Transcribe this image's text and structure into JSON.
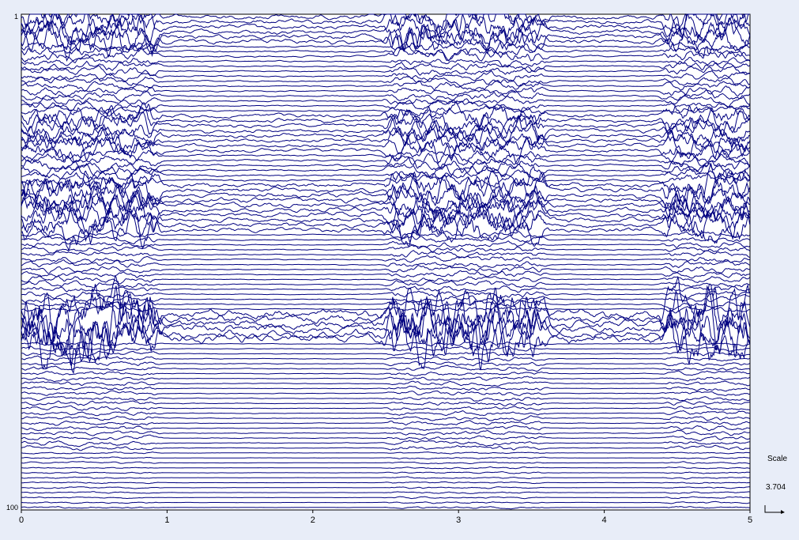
{
  "chart_data": {
    "type": "line",
    "title": "",
    "xlabel": "",
    "ylabel": "",
    "xlim": [
      0,
      5
    ],
    "x_ticks": [
      "0",
      "1",
      "2",
      "3",
      "4",
      "5"
    ],
    "channel_count": 100,
    "channel_labels_visible": [
      "1",
      "100"
    ],
    "series_color": "#000080",
    "grid": false,
    "legend": "none",
    "burst_segments": [
      [
        0.0,
        0.9
      ],
      [
        2.55,
        3.55
      ],
      [
        4.45,
        5.0
      ]
    ]
  },
  "scale": {
    "title": "Scale",
    "value": "3.704"
  },
  "colors": {
    "background": "#e8edf8",
    "plot_background": "#ffffff",
    "trace": "#000080",
    "axis": "#000000"
  }
}
